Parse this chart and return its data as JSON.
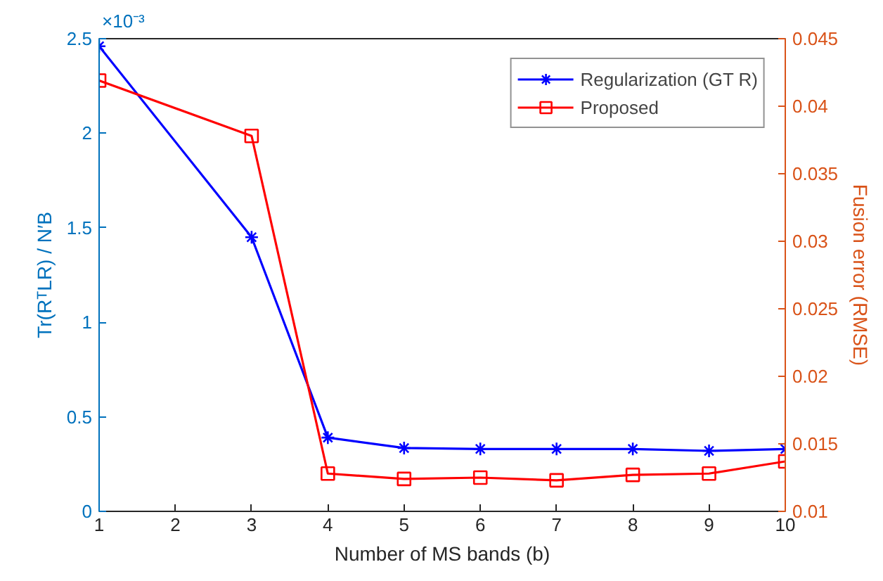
{
  "chart_data": {
    "type": "line",
    "xlabel": "Number of MS bands (b)",
    "ylabel": "Tr(RᵀLR) / N′B",
    "y2label": "Fusion error (RMSE)",
    "annotations": [
      "×10⁻³"
    ],
    "x": [
      1,
      3,
      4,
      5,
      6,
      7,
      8,
      9,
      10
    ],
    "series": [
      {
        "name": "Regularization (GT R)",
        "color": "#0000ff",
        "marker": "cross",
        "values": [
          2.46,
          1.45,
          0.39,
          0.335,
          0.33,
          0.33,
          0.33,
          0.32,
          0.33
        ]
      },
      {
        "name": "Proposed",
        "color": "#ff0000",
        "marker": "square",
        "axis": "y2",
        "values": [
          0.0419,
          0.0378,
          0.0128,
          0.0124,
          0.0125,
          0.0123,
          0.0127,
          0.0128,
          0.0137
        ]
      }
    ],
    "xlim": [
      1,
      10
    ],
    "xticks": [
      1,
      2,
      3,
      4,
      5,
      6,
      7,
      8,
      9,
      10
    ],
    "ylim": [
      0,
      2.5
    ],
    "yticks": [
      0,
      0.5,
      1,
      1.5,
      2,
      2.5
    ],
    "y2lim": [
      0.01,
      0.045
    ],
    "y2ticks": [
      0.01,
      0.015,
      0.02,
      0.025,
      0.03,
      0.035,
      0.04,
      0.045
    ],
    "grid": false,
    "legend": "top right",
    "line_style": "solid"
  }
}
